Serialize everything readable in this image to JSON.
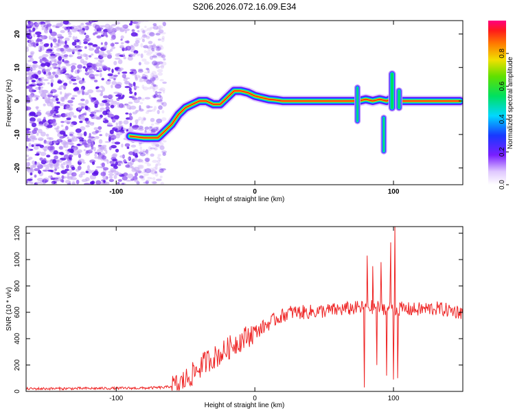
{
  "figure_title": "S206.2026.072.16.09.E34",
  "chart_data": [
    {
      "type": "heatmap",
      "title": "S206.2026.072.16.09.E34",
      "xlabel": "Height of straight line (km)",
      "ylabel": "Frequency (Hz)",
      "xlim": [
        -165,
        150
      ],
      "ylim": [
        -25,
        24
      ],
      "xticks": [
        -100,
        0,
        100
      ],
      "yticks": [
        -20,
        -10,
        0,
        10,
        20
      ],
      "colorbar": {
        "label": "Normalized spectral amplitude",
        "range": [
          0.0,
          1.0
        ],
        "ticks": [
          0.0,
          0.2,
          0.4,
          0.6,
          0.8
        ]
      },
      "ridge": {
        "x": [
          -90,
          -80,
          -75,
          -70,
          -65,
          -60,
          -55,
          -50,
          -45,
          -40,
          -35,
          -30,
          -25,
          -20,
          -15,
          -10,
          -5,
          0,
          5,
          10,
          15,
          20,
          40,
          60,
          75,
          80,
          85,
          90,
          95,
          100,
          105,
          110,
          120,
          130,
          140,
          148
        ],
        "freq": [
          -10.5,
          -11,
          -11,
          -11,
          -9,
          -7,
          -4,
          -2,
          -1,
          0,
          0,
          -1,
          -1,
          1,
          3,
          3,
          2.5,
          1.5,
          1,
          0.5,
          0.3,
          0,
          0,
          0,
          0,
          0.5,
          0,
          0.5,
          0,
          1,
          0,
          0,
          0,
          0,
          0,
          0
        ]
      },
      "noise_region_x": [
        -165,
        -65
      ]
    },
    {
      "type": "line",
      "xlabel": "Height of straight line (km)",
      "ylabel": "SNR (10 * v/v)",
      "xlim": [
        -165,
        150
      ],
      "ylim": [
        0,
        1250
      ],
      "xticks": [
        -100,
        0,
        100
      ],
      "yticks": [
        0,
        200,
        400,
        600,
        800,
        1000,
        1200
      ],
      "series": [
        {
          "name": "SNR",
          "color": "#ee2222",
          "trend": {
            "x": [
              -165,
              -80,
              -65,
              -55,
              -45,
              -35,
              -25,
              -15,
              -5,
              5,
              15,
              25,
              35,
              50,
              70,
              85,
              100,
              115,
              130,
              150
            ],
            "y": [
              20,
              25,
              30,
              50,
              130,
              230,
              280,
              360,
              420,
              480,
              550,
              600,
              600,
              610,
              630,
              640,
              630,
              620,
              630,
              600
            ]
          },
          "peaks": [
            {
              "x": 79,
              "y": 30
            },
            {
              "x": 81,
              "y": 1030
            },
            {
              "x": 85,
              "y": 950
            },
            {
              "x": 88,
              "y": 200
            },
            {
              "x": 91,
              "y": 980
            },
            {
              "x": 95,
              "y": 120
            },
            {
              "x": 98,
              "y": 1130
            },
            {
              "x": 100,
              "y": 90
            },
            {
              "x": 101,
              "y": 1250
            },
            {
              "x": 103,
              "y": 100
            }
          ]
        }
      ]
    }
  ]
}
